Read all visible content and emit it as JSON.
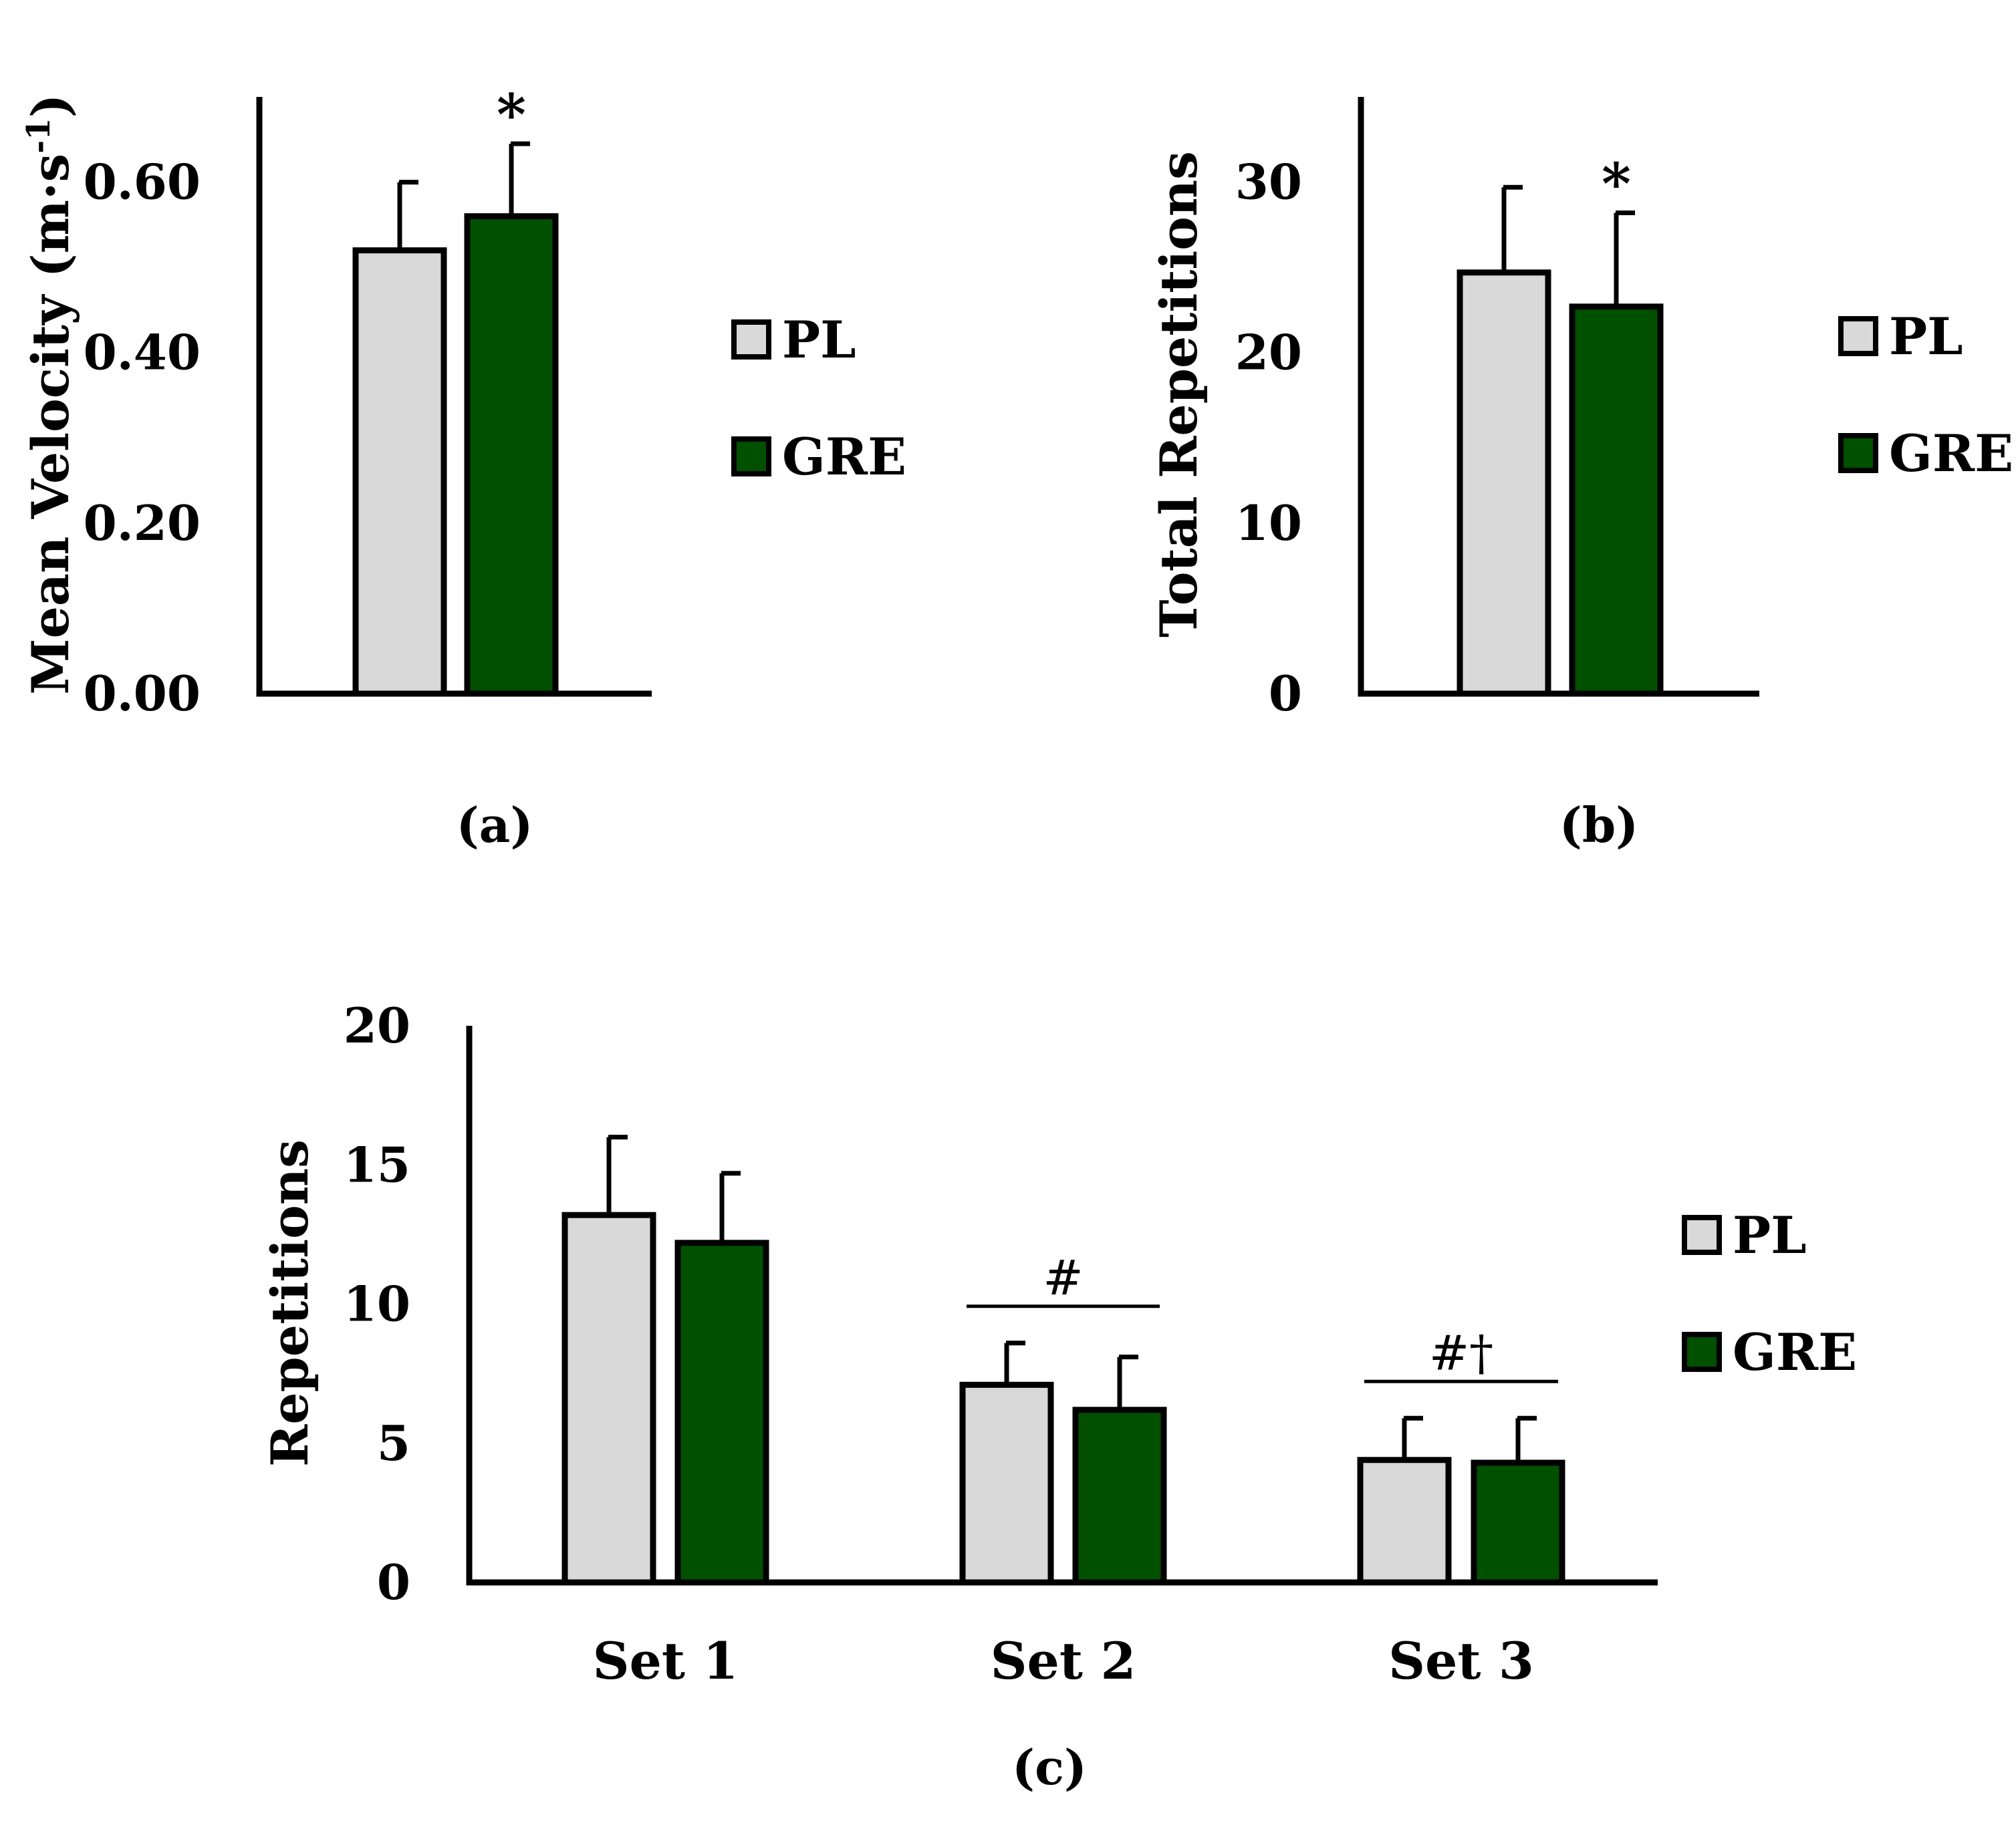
{
  "colors": {
    "PL": "#d9d9d9",
    "GRE": "#005000",
    "outline": "#000000"
  },
  "chart_data": [
    {
      "id": "a",
      "type": "bar",
      "panel_label": "(a)",
      "ylabel": "Mean Velocity (m·s",
      "ylabel_superscript": "-1",
      "ylabel_close": ")",
      "ylim": [
        0,
        0.7
      ],
      "yticks": [
        0.0,
        0.2,
        0.4,
        0.6
      ],
      "ytick_labels": [
        "0.00",
        "0.20",
        "0.40",
        "0.60"
      ],
      "series": [
        {
          "name": "PL",
          "values": [
            0.52
          ],
          "errors": [
            0.08
          ]
        },
        {
          "name": "GRE",
          "values": [
            0.56
          ],
          "errors": [
            0.085
          ]
        }
      ],
      "annotations": [
        {
          "series": "GRE",
          "text": "*"
        }
      ],
      "legend": {
        "position": "right",
        "entries": [
          "PL",
          "GRE"
        ]
      }
    },
    {
      "id": "b",
      "type": "bar",
      "panel_label": "(b)",
      "ylabel": "Total Repetitions",
      "ylim": [
        0,
        35
      ],
      "yticks": [
        0,
        10,
        20,
        30
      ],
      "ytick_labels": [
        "0",
        "10",
        "20",
        "30"
      ],
      "series": [
        {
          "name": "PL",
          "values": [
            24.7
          ],
          "errors": [
            5.0
          ]
        },
        {
          "name": "GRE",
          "values": [
            22.7
          ],
          "errors": [
            5.5
          ]
        }
      ],
      "annotations": [
        {
          "series": "GRE",
          "text": "*"
        }
      ],
      "legend": {
        "position": "right",
        "entries": [
          "PL",
          "GRE"
        ]
      }
    },
    {
      "id": "c",
      "type": "bar",
      "panel_label": "(c)",
      "ylabel": "Repetitions",
      "ylim": [
        0,
        20
      ],
      "yticks": [
        0,
        5,
        10,
        15,
        20
      ],
      "ytick_labels": [
        "0",
        "5",
        "10",
        "15",
        "20"
      ],
      "categories": [
        "Set 1",
        "Set 2",
        "Set 3"
      ],
      "series": [
        {
          "name": "PL",
          "values": [
            13.2,
            7.1,
            4.4
          ],
          "errors": [
            2.8,
            1.5,
            1.5
          ]
        },
        {
          "name": "GRE",
          "values": [
            12.2,
            6.2,
            4.3
          ],
          "errors": [
            2.5,
            1.9,
            1.6
          ]
        }
      ],
      "annotations": [
        {
          "category": "Set 2",
          "text": "#"
        },
        {
          "category": "Set 3",
          "text": "#†"
        }
      ],
      "legend": {
        "position": "right",
        "entries": [
          "PL",
          "GRE"
        ]
      }
    }
  ]
}
